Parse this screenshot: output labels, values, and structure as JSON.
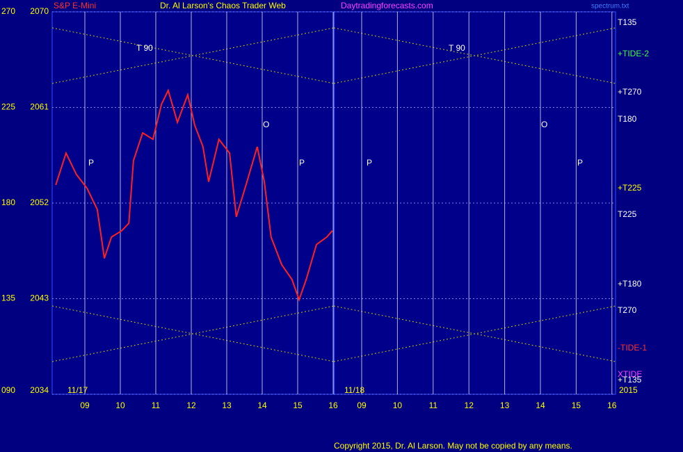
{
  "chart_data": {
    "type": "line",
    "header": {
      "instrument": "S&P E-Mini",
      "title": "Dr. Al Larson's Chaos Trader Web",
      "site": "Daytradingforecasts.com",
      "file": "spectrum.txt"
    },
    "angle_labels": [
      "270",
      "225",
      "180",
      "135",
      "090"
    ],
    "ylim": [
      2034,
      2070
    ],
    "yticks": [
      2070,
      2061,
      2052,
      2043,
      2034
    ],
    "xticks": [
      {
        "value": 9,
        "label": "09"
      },
      10,
      11,
      12,
      13,
      14,
      15,
      16
    ],
    "panels": [
      {
        "date": "11/17"
      },
      {
        "date": "11/18"
      }
    ],
    "year": "2015",
    "series": [
      {
        "name": "S&P E-Mini",
        "color": "#ff2020",
        "x": [
          8.18,
          8.47,
          8.76,
          9.06,
          9.35,
          9.55,
          9.75,
          10.04,
          10.24,
          10.37,
          10.63,
          10.92,
          11.16,
          11.35,
          11.61,
          11.9,
          12.1,
          12.33,
          12.49,
          12.78,
          13.08,
          13.27,
          13.57,
          13.86,
          14.06,
          14.25,
          14.55,
          14.84,
          15.04,
          15.24,
          15.53,
          15.82,
          15.98
        ],
        "values": [
          2053.7,
          2056.7,
          2054.7,
          2053.4,
          2051.4,
          2046.8,
          2048.8,
          2049.4,
          2050.1,
          2056.0,
          2058.6,
          2058.0,
          2061.3,
          2062.6,
          2059.6,
          2062.2,
          2059.3,
          2057.3,
          2054.0,
          2058.0,
          2056.7,
          2050.7,
          2054.0,
          2057.3,
          2054.0,
          2048.8,
          2046.2,
          2044.8,
          2042.9,
          2044.8,
          2048.1,
          2048.8,
          2049.4
        ]
      }
    ],
    "right_labels": [
      {
        "text": "T135",
        "color": "#ffffff"
      },
      {
        "text": "+TIDE-2",
        "color": "#40ff40"
      },
      {
        "text": "+T270",
        "color": "#ffffff"
      },
      {
        "text": "T180",
        "color": "#ffffff"
      },
      {
        "text": "+T225",
        "color": "#ffff00"
      },
      {
        "text": "T225",
        "color": "#ffffff"
      },
      {
        "text": "+T180",
        "color": "#ffffff"
      },
      {
        "text": "T270",
        "color": "#ffffff"
      },
      {
        "text": "-TIDE-1",
        "color": "#ff3030"
      },
      {
        "text": "XTIDE",
        "color": "#ff40ff"
      },
      {
        "text": "+T135",
        "color": "#ffffff"
      }
    ],
    "annotations": [
      "T 90",
      "T 90",
      "O",
      "O",
      "P",
      "P",
      "P",
      "P"
    ],
    "copyright": "Copyright 2015, Dr. Al Larson. May not be copied by any means."
  }
}
